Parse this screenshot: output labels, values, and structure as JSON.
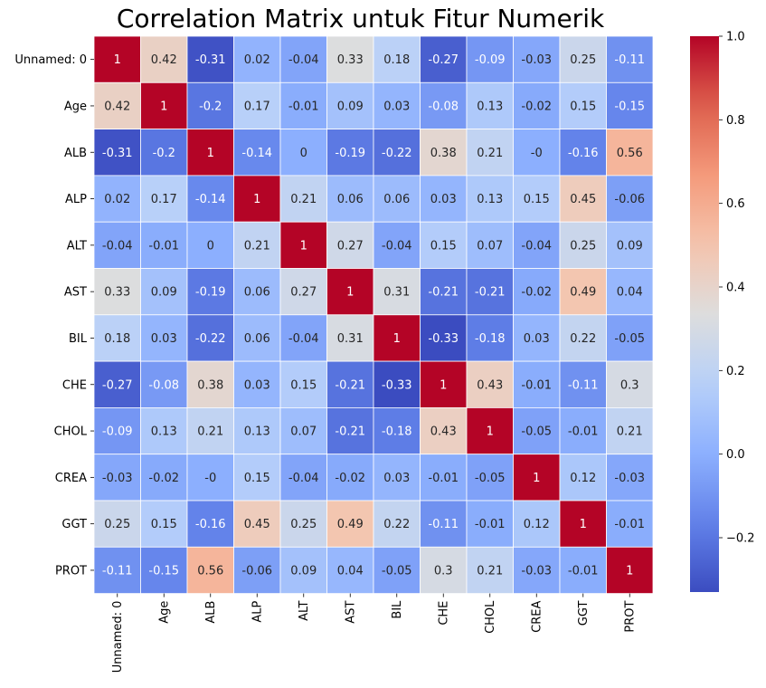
{
  "chart_data": {
    "type": "heatmap",
    "title": "Correlation Matrix untuk Fitur Numerik",
    "xlabel": "",
    "ylabel": "",
    "labels": [
      "Unnamed: 0",
      "Age",
      "ALB",
      "ALP",
      "ALT",
      "AST",
      "BIL",
      "CHE",
      "CHOL",
      "CREA",
      "GGT",
      "PROT"
    ],
    "matrix": [
      [
        1,
        0.42,
        -0.31,
        0.02,
        -0.04,
        0.33,
        0.18,
        -0.27,
        -0.09,
        -0.03,
        0.25,
        -0.11
      ],
      [
        0.42,
        1,
        -0.2,
        0.17,
        -0.01,
        0.09,
        0.03,
        -0.08,
        0.13,
        -0.02,
        0.15,
        -0.15
      ],
      [
        -0.31,
        -0.2,
        1,
        -0.14,
        0,
        -0.19,
        -0.22,
        0.38,
        0.21,
        "-0",
        -0.16,
        0.56
      ],
      [
        0.02,
        0.17,
        -0.14,
        1,
        0.21,
        0.06,
        0.06,
        0.03,
        0.13,
        0.15,
        0.45,
        -0.06
      ],
      [
        -0.04,
        -0.01,
        0,
        0.21,
        1,
        0.27,
        -0.04,
        0.15,
        0.07,
        -0.04,
        0.25,
        0.09
      ],
      [
        0.33,
        0.09,
        -0.19,
        0.06,
        0.27,
        1,
        0.31,
        -0.21,
        -0.21,
        -0.02,
        0.49,
        0.04
      ],
      [
        0.18,
        0.03,
        -0.22,
        0.06,
        -0.04,
        0.31,
        1,
        -0.33,
        -0.18,
        0.03,
        0.22,
        -0.05
      ],
      [
        -0.27,
        -0.08,
        0.38,
        0.03,
        0.15,
        -0.21,
        -0.33,
        1,
        0.43,
        -0.01,
        -0.11,
        0.3
      ],
      [
        -0.09,
        0.13,
        0.21,
        0.13,
        0.07,
        -0.21,
        -0.18,
        0.43,
        1,
        -0.05,
        -0.01,
        0.21
      ],
      [
        -0.03,
        -0.02,
        "-0",
        0.15,
        -0.04,
        -0.02,
        0.03,
        -0.01,
        -0.05,
        1,
        0.12,
        -0.03
      ],
      [
        0.25,
        0.15,
        -0.16,
        0.45,
        0.25,
        0.49,
        0.22,
        -0.11,
        -0.01,
        0.12,
        1,
        -0.01
      ],
      [
        -0.11,
        -0.15,
        0.56,
        -0.06,
        0.09,
        0.04,
        -0.05,
        0.3,
        0.21,
        -0.03,
        -0.01,
        1
      ]
    ],
    "colorbar": {
      "colormap": "coolwarm",
      "vmin": -0.33,
      "vmax": 1.0,
      "ticks": [
        1.0,
        0.8,
        0.6,
        0.4,
        0.2,
        0.0,
        -0.2
      ],
      "tick_labels": [
        "1.0",
        "0.8",
        "0.6",
        "0.4",
        "0.2",
        "0.0",
        "−0.2"
      ]
    },
    "grid": false,
    "cell_borders": "white"
  }
}
